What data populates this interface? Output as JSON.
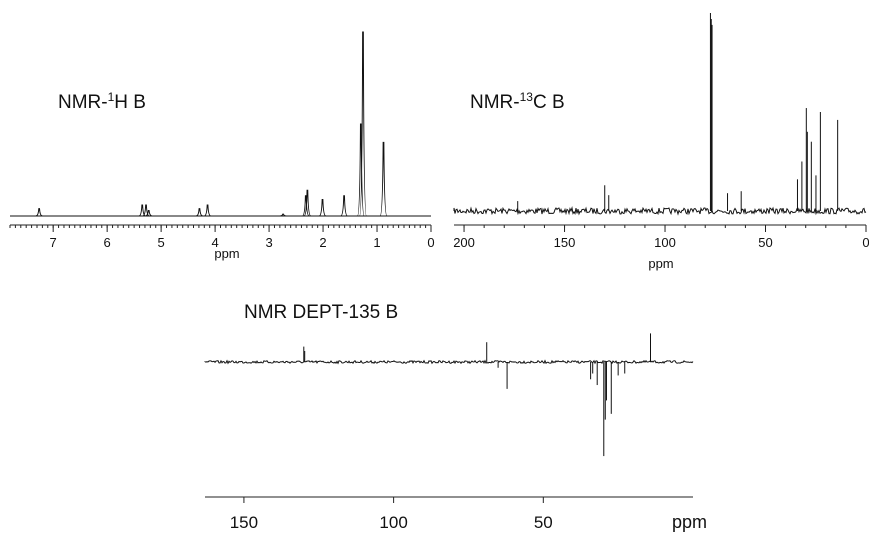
{
  "chart_data": [
    {
      "id": "h1",
      "type": "line",
      "title_main": "NMR-",
      "title_sup": "1",
      "title_tail": "H B",
      "xlabel": "ppm",
      "xlim": [
        7.8,
        0
      ],
      "xticks": [
        7,
        6,
        5,
        4,
        3,
        2,
        1,
        0
      ],
      "ylim": [
        0,
        100
      ],
      "peaks": [
        {
          "x": 7.26,
          "y": 4
        },
        {
          "x": 5.35,
          "y": 6
        },
        {
          "x": 5.28,
          "y": 6
        },
        {
          "x": 5.23,
          "y": 3
        },
        {
          "x": 4.29,
          "y": 4
        },
        {
          "x": 4.14,
          "y": 6
        },
        {
          "x": 2.74,
          "y": 1
        },
        {
          "x": 2.32,
          "y": 11
        },
        {
          "x": 2.29,
          "y": 14
        },
        {
          "x": 2.01,
          "y": 9
        },
        {
          "x": 1.61,
          "y": 11
        },
        {
          "x": 1.3,
          "y": 50
        },
        {
          "x": 1.26,
          "y": 100
        },
        {
          "x": 0.88,
          "y": 40
        }
      ]
    },
    {
      "id": "c13",
      "type": "line",
      "title_main": "NMR-",
      "title_sup": "13",
      "title_tail": "C B",
      "xlabel": "ppm",
      "xlim": [
        205,
        0
      ],
      "xticks": [
        200,
        150,
        100,
        50,
        0
      ],
      "ylim": [
        0,
        100
      ],
      "peaks": [
        {
          "x": 173.3,
          "y": 5
        },
        {
          "x": 130.0,
          "y": 13
        },
        {
          "x": 128.0,
          "y": 8
        },
        {
          "x": 77.4,
          "y": 100
        },
        {
          "x": 77.0,
          "y": 97
        },
        {
          "x": 76.6,
          "y": 94
        },
        {
          "x": 68.9,
          "y": 9
        },
        {
          "x": 62.1,
          "y": 10
        },
        {
          "x": 34.1,
          "y": 16
        },
        {
          "x": 31.9,
          "y": 25
        },
        {
          "x": 29.7,
          "y": 52
        },
        {
          "x": 29.2,
          "y": 40
        },
        {
          "x": 27.2,
          "y": 35
        },
        {
          "x": 24.9,
          "y": 18
        },
        {
          "x": 22.7,
          "y": 50
        },
        {
          "x": 14.1,
          "y": 46
        }
      ]
    },
    {
      "id": "dept",
      "type": "line",
      "title": "NMR DEPT-135  B",
      "xlabel": "ppm",
      "xlim": [
        163,
        0
      ],
      "xticks": [
        150,
        100,
        50
      ],
      "ylim": [
        -100,
        40
      ],
      "peaks": [
        {
          "x": 130.0,
          "y": 14
        },
        {
          "x": 129.7,
          "y": 10
        },
        {
          "x": 68.9,
          "y": 18
        },
        {
          "x": 65.1,
          "y": -6
        },
        {
          "x": 62.1,
          "y": -28
        },
        {
          "x": 34.2,
          "y": -18
        },
        {
          "x": 33.5,
          "y": -12
        },
        {
          "x": 32.0,
          "y": -24
        },
        {
          "x": 29.8,
          "y": -98
        },
        {
          "x": 29.3,
          "y": -60
        },
        {
          "x": 28.9,
          "y": -40
        },
        {
          "x": 27.3,
          "y": -54
        },
        {
          "x": 25.0,
          "y": -14
        },
        {
          "x": 22.8,
          "y": -12
        },
        {
          "x": 14.2,
          "y": 26
        }
      ]
    }
  ]
}
